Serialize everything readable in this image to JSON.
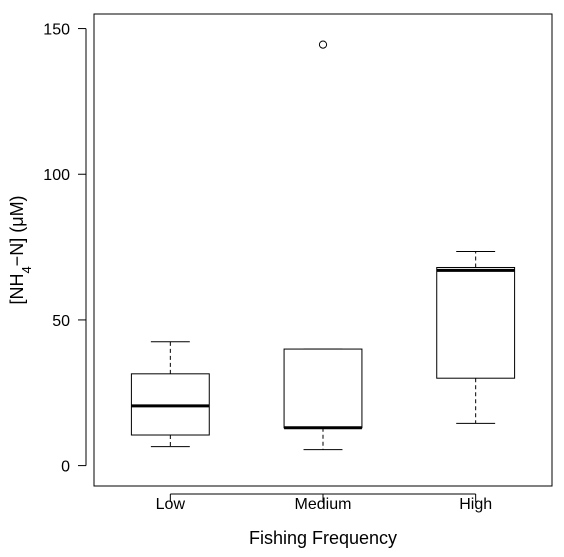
{
  "chart_data": {
    "type": "box",
    "xlabel": "Fishing Frequency",
    "ylabel": {
      "prefix": "[NH",
      "subscript": "4",
      "suffix": "−N] (μM)"
    },
    "ylim": [
      -7,
      155
    ],
    "yticks": [
      0,
      50,
      100,
      150
    ],
    "grid": false,
    "categories": [
      "Low",
      "Medium",
      "High"
    ],
    "boxes": [
      {
        "category": "Low",
        "whisker_low": 6.5,
        "q1": 10.5,
        "median": 20.5,
        "q3": 31.5,
        "whisker_high": 42.5,
        "outliers": []
      },
      {
        "category": "Medium",
        "whisker_low": 5.5,
        "q1": 13,
        "median": 13,
        "q3": 40,
        "whisker_high": 40,
        "outliers": [
          144.5
        ]
      },
      {
        "category": "High",
        "whisker_low": 14.5,
        "q1": 30,
        "median": 67,
        "q3": 68,
        "whisker_high": 73.5,
        "outliers": []
      }
    ]
  }
}
